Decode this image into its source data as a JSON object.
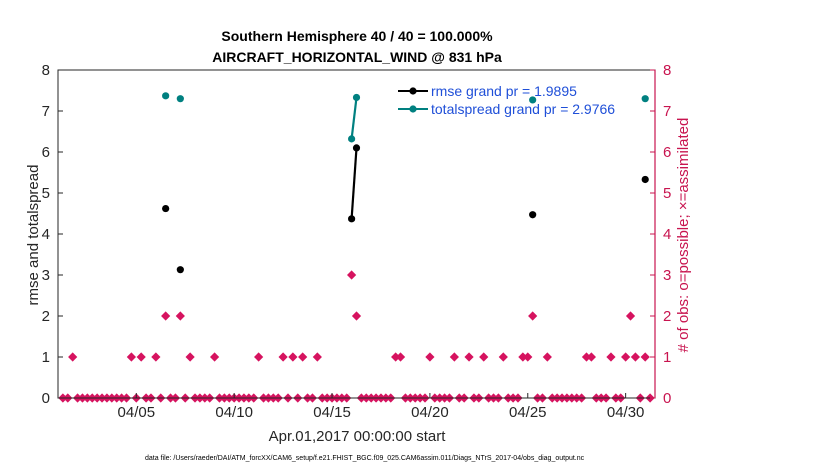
{
  "chart_data": {
    "type": "line",
    "title": [
      "Southern Hemisphere 40 / 40 = 100.000%",
      "AIRCRAFT_HORIZONTAL_WIND @ 831 hPa"
    ],
    "xlabel": "Apr.01,2017 00:00:00 start",
    "ylabel_left": "rmse and totalspread",
    "ylabel_right": "# of obs: o=possible; ×=assimilated",
    "x_range_days": [
      1.0,
      31.5
    ],
    "ylim_left": [
      0,
      8
    ],
    "ylim_right": [
      0,
      8
    ],
    "left_yticks": [
      0,
      1,
      2,
      3,
      4,
      5,
      6,
      7,
      8
    ],
    "right_yticks": [
      0,
      1,
      2,
      3,
      4,
      5,
      6,
      7,
      8
    ],
    "xticks": [
      {
        "day": 5,
        "label": "04/05"
      },
      {
        "day": 10,
        "label": "04/10"
      },
      {
        "day": 15,
        "label": "04/15"
      },
      {
        "day": 20,
        "label": "04/20"
      },
      {
        "day": 25,
        "label": "04/25"
      },
      {
        "day": 30,
        "label": "04/30"
      }
    ],
    "legend_position": "top-right",
    "colors": {
      "rmse": "#000000",
      "totalspread": "#008080",
      "obs": "#d6135f",
      "right_axis": "#c8144f",
      "legend_text": "#1f4fd8"
    },
    "series": [
      {
        "name": "rmse grand pr = 1.9895",
        "points": [
          {
            "x": 6.5,
            "y": 4.62
          },
          {
            "x": 7.25,
            "y": 3.13
          },
          {
            "x": 16.0,
            "y": 4.37
          },
          {
            "x": 16.25,
            "y": 6.1
          },
          {
            "x": 25.25,
            "y": 4.47
          },
          {
            "x": 31.0,
            "y": 5.33
          }
        ],
        "segments": [
          [
            2,
            3
          ]
        ]
      },
      {
        "name": "totalspread grand pr = 2.9766",
        "points": [
          {
            "x": 6.5,
            "y": 7.37
          },
          {
            "x": 7.25,
            "y": 7.3
          },
          {
            "x": 16.0,
            "y": 6.32
          },
          {
            "x": 16.25,
            "y": 7.33
          },
          {
            "x": 25.25,
            "y": 7.27
          },
          {
            "x": 31.0,
            "y": 7.3
          }
        ],
        "segments": [
          [
            2,
            3
          ]
        ]
      },
      {
        "name": "obs",
        "points": [
          {
            "x": 1.25,
            "y": 0
          },
          {
            "x": 1.5,
            "y": 0
          },
          {
            "x": 1.75,
            "y": 1
          },
          {
            "x": 2.0,
            "y": 0
          },
          {
            "x": 2.25,
            "y": 0
          },
          {
            "x": 2.5,
            "y": 0
          },
          {
            "x": 2.75,
            "y": 0
          },
          {
            "x": 3.0,
            "y": 0
          },
          {
            "x": 3.25,
            "y": 0
          },
          {
            "x": 3.5,
            "y": 0
          },
          {
            "x": 3.75,
            "y": 0
          },
          {
            "x": 4.0,
            "y": 0
          },
          {
            "x": 4.25,
            "y": 0
          },
          {
            "x": 4.5,
            "y": 0
          },
          {
            "x": 4.75,
            "y": 1
          },
          {
            "x": 5.0,
            "y": 0
          },
          {
            "x": 5.25,
            "y": 1
          },
          {
            "x": 5.5,
            "y": 0
          },
          {
            "x": 5.75,
            "y": 0
          },
          {
            "x": 6.0,
            "y": 1
          },
          {
            "x": 6.25,
            "y": 0
          },
          {
            "x": 6.5,
            "y": 2
          },
          {
            "x": 6.75,
            "y": 0
          },
          {
            "x": 7.0,
            "y": 0
          },
          {
            "x": 7.25,
            "y": 2
          },
          {
            "x": 7.5,
            "y": 0
          },
          {
            "x": 7.75,
            "y": 1
          },
          {
            "x": 8.0,
            "y": 0
          },
          {
            "x": 8.25,
            "y": 0
          },
          {
            "x": 8.5,
            "y": 0
          },
          {
            "x": 8.75,
            "y": 0
          },
          {
            "x": 9.0,
            "y": 1
          },
          {
            "x": 9.25,
            "y": 0
          },
          {
            "x": 9.5,
            "y": 0
          },
          {
            "x": 9.75,
            "y": 0
          },
          {
            "x": 10.0,
            "y": 0
          },
          {
            "x": 10.25,
            "y": 0
          },
          {
            "x": 10.5,
            "y": 0
          },
          {
            "x": 10.75,
            "y": 0
          },
          {
            "x": 11.0,
            "y": 0
          },
          {
            "x": 11.25,
            "y": 1
          },
          {
            "x": 11.5,
            "y": 0
          },
          {
            "x": 11.75,
            "y": 0
          },
          {
            "x": 12.0,
            "y": 0
          },
          {
            "x": 12.25,
            "y": 0
          },
          {
            "x": 12.5,
            "y": 1
          },
          {
            "x": 12.75,
            "y": 0
          },
          {
            "x": 13.0,
            "y": 1
          },
          {
            "x": 13.25,
            "y": 0
          },
          {
            "x": 13.5,
            "y": 1
          },
          {
            "x": 13.75,
            "y": 0
          },
          {
            "x": 14.0,
            "y": 0
          },
          {
            "x": 14.25,
            "y": 1
          },
          {
            "x": 14.5,
            "y": 0
          },
          {
            "x": 14.75,
            "y": 0
          },
          {
            "x": 15.0,
            "y": 0
          },
          {
            "x": 15.25,
            "y": 0
          },
          {
            "x": 15.5,
            "y": 0
          },
          {
            "x": 15.75,
            "y": 0
          },
          {
            "x": 16.0,
            "y": 3
          },
          {
            "x": 16.25,
            "y": 2
          },
          {
            "x": 16.5,
            "y": 0
          },
          {
            "x": 16.75,
            "y": 0
          },
          {
            "x": 17.0,
            "y": 0
          },
          {
            "x": 17.25,
            "y": 0
          },
          {
            "x": 17.5,
            "y": 0
          },
          {
            "x": 17.75,
            "y": 0
          },
          {
            "x": 18.0,
            "y": 0
          },
          {
            "x": 18.25,
            "y": 1
          },
          {
            "x": 18.5,
            "y": 1
          },
          {
            "x": 18.75,
            "y": 0
          },
          {
            "x": 19.0,
            "y": 0
          },
          {
            "x": 19.25,
            "y": 0
          },
          {
            "x": 19.5,
            "y": 0
          },
          {
            "x": 19.75,
            "y": 0
          },
          {
            "x": 20.0,
            "y": 1
          },
          {
            "x": 20.25,
            "y": 0
          },
          {
            "x": 20.5,
            "y": 0
          },
          {
            "x": 20.75,
            "y": 0
          },
          {
            "x": 21.0,
            "y": 0
          },
          {
            "x": 21.25,
            "y": 1
          },
          {
            "x": 21.5,
            "y": 0
          },
          {
            "x": 21.75,
            "y": 0
          },
          {
            "x": 22.0,
            "y": 1
          },
          {
            "x": 22.25,
            "y": 0
          },
          {
            "x": 22.5,
            "y": 0
          },
          {
            "x": 22.75,
            "y": 1
          },
          {
            "x": 23.0,
            "y": 0
          },
          {
            "x": 23.25,
            "y": 0
          },
          {
            "x": 23.5,
            "y": 0
          },
          {
            "x": 23.75,
            "y": 1
          },
          {
            "x": 24.0,
            "y": 0
          },
          {
            "x": 24.25,
            "y": 0
          },
          {
            "x": 24.5,
            "y": 0
          },
          {
            "x": 24.75,
            "y": 1
          },
          {
            "x": 25.0,
            "y": 1
          },
          {
            "x": 25.25,
            "y": 2
          },
          {
            "x": 25.5,
            "y": 0
          },
          {
            "x": 25.75,
            "y": 0
          },
          {
            "x": 26.0,
            "y": 1
          },
          {
            "x": 26.25,
            "y": 0
          },
          {
            "x": 26.5,
            "y": 0
          },
          {
            "x": 26.75,
            "y": 0
          },
          {
            "x": 27.0,
            "y": 0
          },
          {
            "x": 27.25,
            "y": 0
          },
          {
            "x": 27.5,
            "y": 0
          },
          {
            "x": 27.75,
            "y": 0
          },
          {
            "x": 28.0,
            "y": 1
          },
          {
            "x": 28.25,
            "y": 1
          },
          {
            "x": 28.5,
            "y": 0
          },
          {
            "x": 28.75,
            "y": 0
          },
          {
            "x": 29.0,
            "y": 0
          },
          {
            "x": 29.25,
            "y": 1
          },
          {
            "x": 29.5,
            "y": 0
          },
          {
            "x": 29.75,
            "y": 0
          },
          {
            "x": 30.0,
            "y": 1
          },
          {
            "x": 30.25,
            "y": 2
          },
          {
            "x": 30.5,
            "y": 1
          },
          {
            "x": 30.75,
            "y": 0
          },
          {
            "x": 31.0,
            "y": 1
          },
          {
            "x": 31.25,
            "y": 0
          }
        ]
      }
    ]
  },
  "footer": "data file: /Users/raeder/DAI/ATM_forcXX/CAM6_setup/f.e21.FHIST_BGC.f09_025.CAM6assim.011/Diags_NTrS_2017-04/obs_diag_output.nc"
}
